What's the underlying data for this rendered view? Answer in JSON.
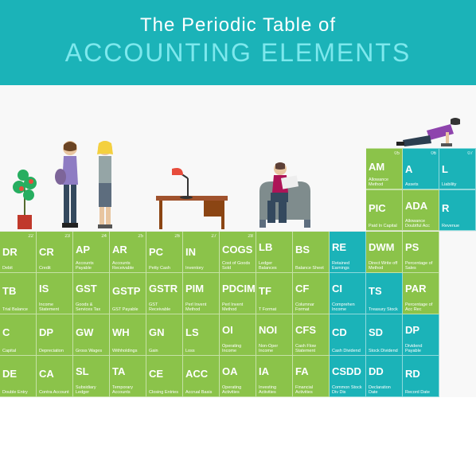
{
  "header": {
    "title_top": "The Periodic Table of",
    "title_bottom": "ACCOUNTING ELEMENTS"
  },
  "colors": {
    "green": "#8bc34a",
    "teal": "#1bb3b8",
    "header_bg": "#1bb3b8",
    "subtitle": "#7de8ed"
  },
  "floating_rows": {
    "top": [
      {
        "n": "05",
        "s": "AM",
        "l": "Allowance Method",
        "c": "green"
      },
      {
        "n": "06",
        "s": "A",
        "l": "Assets",
        "c": "teal"
      },
      {
        "n": "07",
        "s": "L",
        "l": "Liability",
        "c": "teal"
      }
    ],
    "mid": [
      {
        "n": "",
        "s": "PIC",
        "l": "Paid In Capital",
        "c": "green"
      },
      {
        "n": "",
        "s": "ADA",
        "l": "Allowance Doubtful Acc",
        "c": "green"
      },
      {
        "n": "",
        "s": "R",
        "l": "Revenue",
        "c": "teal"
      }
    ]
  },
  "rows": [
    [
      {
        "n": "22",
        "s": "DR",
        "l": "Debit",
        "c": "green"
      },
      {
        "n": "23",
        "s": "CR",
        "l": "Credit",
        "c": "green"
      },
      {
        "n": "24",
        "s": "AP",
        "l": "Accounts Payable",
        "c": "green"
      },
      {
        "n": "25",
        "s": "AR",
        "l": "Accounts Receivable",
        "c": "green"
      },
      {
        "n": "26",
        "s": "PC",
        "l": "Petty Cash",
        "c": "green"
      },
      {
        "n": "27",
        "s": "IN",
        "l": "Inventory",
        "c": "green"
      },
      {
        "n": "28",
        "s": "COGS",
        "l": "Cost of Goods Sold",
        "c": "green"
      },
      {
        "n": "",
        "s": "LB",
        "l": "Ledger Balances",
        "c": "green"
      },
      {
        "n": "",
        "s": "BS",
        "l": "Balance Sheet",
        "c": "green"
      },
      {
        "n": "",
        "s": "RE",
        "l": "Retained Earnings",
        "c": "teal"
      },
      {
        "n": "",
        "s": "DWM",
        "l": "Direct Write off Method",
        "c": "green"
      },
      {
        "n": "",
        "s": "PS",
        "l": "Percentage of Sales",
        "c": "green"
      }
    ],
    [
      {
        "n": "",
        "s": "TB",
        "l": "Trial Balance",
        "c": "green"
      },
      {
        "n": "",
        "s": "IS",
        "l": "Income Statement",
        "c": "green"
      },
      {
        "n": "",
        "s": "GST",
        "l": "Goods & Services Tax",
        "c": "green"
      },
      {
        "n": "",
        "s": "GSTP",
        "l": "GST Payable",
        "c": "green"
      },
      {
        "n": "",
        "s": "GSTR",
        "l": "GST Receivable",
        "c": "green"
      },
      {
        "n": "",
        "s": "PIM",
        "l": "Perl Invent Method",
        "c": "green"
      },
      {
        "n": "",
        "s": "PDCIM",
        "l": "Perl Invent Method",
        "c": "green"
      },
      {
        "n": "",
        "s": "TF",
        "l": "T Format",
        "c": "green"
      },
      {
        "n": "",
        "s": "CF",
        "l": "Columnar Format",
        "c": "green"
      },
      {
        "n": "",
        "s": "CI",
        "l": "Comprehen Income",
        "c": "teal"
      },
      {
        "n": "",
        "s": "TS",
        "l": "Treasury Stock",
        "c": "teal"
      },
      {
        "n": "",
        "s": "PAR",
        "l": "Percentage of Acc Rec",
        "c": "green"
      }
    ],
    [
      {
        "n": "",
        "s": "C",
        "l": "Capital",
        "c": "green"
      },
      {
        "n": "",
        "s": "DP",
        "l": "Depreciation",
        "c": "green"
      },
      {
        "n": "",
        "s": "GW",
        "l": "Gross Wages",
        "c": "green"
      },
      {
        "n": "",
        "s": "WH",
        "l": "Withholdings",
        "c": "green"
      },
      {
        "n": "",
        "s": "GN",
        "l": "Gain",
        "c": "green"
      },
      {
        "n": "",
        "s": "LS",
        "l": "Loss",
        "c": "green"
      },
      {
        "n": "",
        "s": "OI",
        "l": "Operating Income",
        "c": "green"
      },
      {
        "n": "",
        "s": "NOI",
        "l": "Non-Oper Income",
        "c": "green"
      },
      {
        "n": "",
        "s": "CFS",
        "l": "Cash Flow Statement",
        "c": "green"
      },
      {
        "n": "",
        "s": "CD",
        "l": "Cash Dividend",
        "c": "teal"
      },
      {
        "n": "",
        "s": "SD",
        "l": "Stock Dividend",
        "c": "teal"
      },
      {
        "n": "",
        "s": "DP",
        "l": "Dividend Payable",
        "c": "teal"
      }
    ],
    [
      {
        "n": "",
        "s": "DE",
        "l": "Double Entry",
        "c": "green"
      },
      {
        "n": "",
        "s": "CA",
        "l": "Contra Account",
        "c": "green"
      },
      {
        "n": "",
        "s": "SL",
        "l": "Subsidiary Ledger",
        "c": "green"
      },
      {
        "n": "",
        "s": "TA",
        "l": "Temporary Accounts",
        "c": "green"
      },
      {
        "n": "",
        "s": "CE",
        "l": "Closing Entries",
        "c": "green"
      },
      {
        "n": "",
        "s": "ACC",
        "l": "Accrual Basis",
        "c": "green"
      },
      {
        "n": "",
        "s": "OA",
        "l": "Operating Activities",
        "c": "green"
      },
      {
        "n": "",
        "s": "IA",
        "l": "Investing Activities",
        "c": "green"
      },
      {
        "n": "",
        "s": "FA",
        "l": "Financial Activities",
        "c": "green"
      },
      {
        "n": "",
        "s": "CSDD",
        "l": "Common Stock Div Dis",
        "c": "teal"
      },
      {
        "n": "",
        "s": "DD",
        "l": "Declaration Date",
        "c": "teal"
      },
      {
        "n": "",
        "s": "RD",
        "l": "Record Date",
        "c": "teal"
      }
    ]
  ]
}
